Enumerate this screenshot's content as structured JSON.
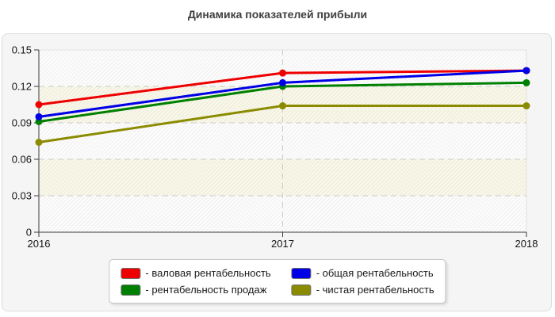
{
  "title": "Динамика показателей прибыли",
  "chart_data": {
    "type": "line",
    "x": [
      "2016",
      "2017",
      "2018"
    ],
    "series": [
      {
        "name": "валовая рентабельность",
        "color": "#ee0000",
        "values": [
          0.105,
          0.131,
          0.133
        ]
      },
      {
        "name": "общая рентабельность",
        "color": "#0000e6",
        "values": [
          0.095,
          0.123,
          0.133
        ]
      },
      {
        "name": "рентабельность продаж",
        "color": "#008000",
        "values": [
          0.091,
          0.12,
          0.123
        ]
      },
      {
        "name": "чистая рентабельность",
        "color": "#8b8b00",
        "values": [
          0.074,
          0.104,
          0.104
        ]
      }
    ],
    "title": "Динамика показателей прибыли",
    "xlabel": "",
    "ylabel": "",
    "ylim": [
      0,
      0.15
    ],
    "yticks": [
      0,
      0.03,
      0.06,
      0.09,
      0.12,
      0.15
    ],
    "ytick_labels": [
      "0",
      "0.03",
      "0.06",
      "0.09",
      "0.12",
      "0.15"
    ],
    "grid": "dashed-horizontal-plus-2017-vertical",
    "legend_position": "bottom-center"
  },
  "legend": {
    "items": [
      {
        "label": "- валовая рентабельность",
        "color": "#ee0000"
      },
      {
        "label": "- общая рентабельность",
        "color": "#0000e6"
      },
      {
        "label": "- рентабельность продаж",
        "color": "#008000"
      },
      {
        "label": "- чистая рентабельность",
        "color": "#8b8b00"
      }
    ]
  },
  "style_colors": {
    "panel_bg": "#f5f5f5",
    "panel_border": "#dcdcdc",
    "band_light": "#fcfcfc",
    "band_cream": "#f8f7e8",
    "gridline": "#cdcdcd",
    "axis": "#3c3c3c",
    "tick_label": "#141414",
    "title": "#3f3f3f"
  }
}
